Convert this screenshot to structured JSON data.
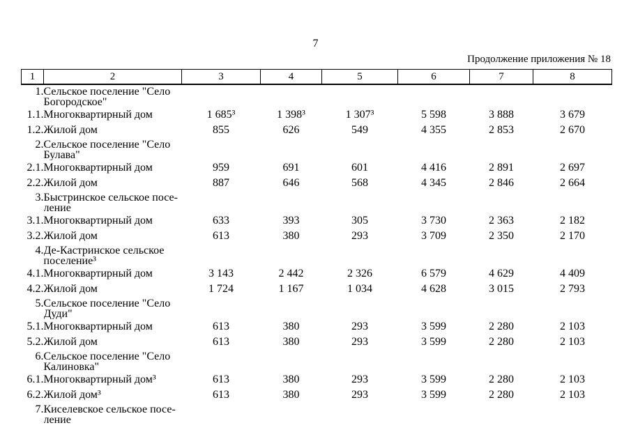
{
  "page": {
    "number": "7",
    "continuation": "Продолжение приложения № 18"
  },
  "table": {
    "header": [
      "1",
      "2",
      "3",
      "4",
      "5",
      "6",
      "7",
      "8"
    ],
    "rows": [
      {
        "type": "group",
        "num": "1.",
        "lines": [
          "Сельское поселение \"Село",
          "Богородское\""
        ]
      },
      {
        "type": "item",
        "num": "1.1.",
        "label": "Многоквартирный дом",
        "values": [
          "1 685³",
          "1 398³",
          "1 307³",
          "5 598",
          "3 888",
          "3 679"
        ]
      },
      {
        "type": "item",
        "num": "1.2.",
        "label": "Жилой дом",
        "values": [
          "855",
          "626",
          "549",
          "4 355",
          "2 853",
          "2 670"
        ]
      },
      {
        "type": "group",
        "num": "2.",
        "lines": [
          "Сельское поселение \"Село",
          "Булава\""
        ]
      },
      {
        "type": "item",
        "num": "2.1.",
        "label": "Многоквартирный дом",
        "values": [
          "959",
          "691",
          "601",
          "4 416",
          "2 891",
          "2 697"
        ]
      },
      {
        "type": "item",
        "num": "2.2.",
        "label": "Жилой дом",
        "values": [
          "887",
          "646",
          "568",
          "4 345",
          "2 846",
          "2 664"
        ]
      },
      {
        "type": "group",
        "num": "3.",
        "lines": [
          "Быстринское сельское посе-",
          "ление"
        ]
      },
      {
        "type": "item",
        "num": "3.1.",
        "label": "Многоквартирный дом",
        "values": [
          "633",
          "393",
          "305",
          "3 730",
          "2 363",
          "2 182"
        ]
      },
      {
        "type": "item",
        "num": "3.2.",
        "label": "Жилой дом",
        "values": [
          "613",
          "380",
          "293",
          "3 709",
          "2 350",
          "2 170"
        ]
      },
      {
        "type": "group",
        "num": "4.",
        "lines": [
          "Де-Кастринское сельское",
          "поселение³"
        ]
      },
      {
        "type": "item",
        "num": "4.1.",
        "label": "Многоквартирный дом",
        "values": [
          "3 143",
          "2 442",
          "2 326",
          "6 579",
          "4 629",
          "4 409"
        ]
      },
      {
        "type": "item",
        "num": "4.2.",
        "label": "Жилой дом",
        "values": [
          "1 724",
          "1 167",
          "1 034",
          "4 628",
          "3 015",
          "2 793"
        ]
      },
      {
        "type": "group",
        "num": "5.",
        "lines": [
          "Сельское поселение \"Село",
          "Дуди\""
        ]
      },
      {
        "type": "item",
        "num": "5.1.",
        "label": "Многоквартирный дом",
        "values": [
          "613",
          "380",
          "293",
          "3 599",
          "2 280",
          "2 103"
        ]
      },
      {
        "type": "item",
        "num": "5.2.",
        "label": "Жилой дом",
        "values": [
          "613",
          "380",
          "293",
          "3 599",
          "2 280",
          "2 103"
        ]
      },
      {
        "type": "group",
        "num": "6.",
        "lines": [
          "Сельское поселение \"Село",
          "Калиновка\""
        ]
      },
      {
        "type": "item",
        "num": "6.1.",
        "label": "Многоквартирный дом³",
        "values": [
          "613",
          "380",
          "293",
          "3 599",
          "2 280",
          "2 103"
        ]
      },
      {
        "type": "item",
        "num": "6.2.",
        "label": "Жилой дом³",
        "values": [
          "613",
          "380",
          "293",
          "3 599",
          "2 280",
          "2 103"
        ]
      },
      {
        "type": "group",
        "num": "7.",
        "lines": [
          "Киселевское сельское посе-",
          "ление"
        ]
      }
    ]
  }
}
